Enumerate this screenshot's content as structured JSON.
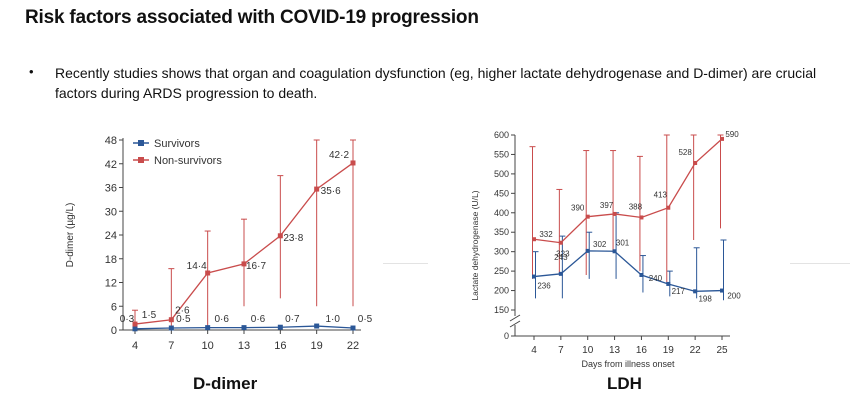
{
  "slide": {
    "title": "Risk factors associated with COVID-19 progression",
    "bullet": "Recently studies shows that organ and coagulation dysfunction (eg, higher lactate dehydrogenase and D-dimer) are crucial factors during ARDS progression to death."
  },
  "colors": {
    "survivors": "#2b5797",
    "non_survivors": "#c94c4c"
  },
  "chart_data": [
    {
      "type": "line",
      "title": "D-dimer",
      "xlabel": "",
      "ylabel": "D-dimer (µg/L)",
      "x": [
        4,
        7,
        10,
        13,
        16,
        19,
        22
      ],
      "ylim": [
        0,
        48
      ],
      "yticks": [
        0,
        6,
        12,
        18,
        24,
        30,
        36,
        42,
        48
      ],
      "legend_position": "top-left",
      "error_bars": true,
      "series": [
        {
          "name": "Survivors",
          "values": [
            0.3,
            0.5,
            0.6,
            0.6,
            0.7,
            1.0,
            0.5
          ],
          "labels": [
            "0·3",
            "0·5",
            "0·6",
            "0·6",
            "0·7",
            "1·0",
            "0·5"
          ],
          "err_upper": [
            null,
            null,
            null,
            null,
            null,
            null,
            null
          ]
        },
        {
          "name": "Non-survivors",
          "values": [
            1.5,
            2.6,
            14.4,
            16.7,
            23.8,
            35.6,
            42.2
          ],
          "labels": [
            "1·5",
            "2·6",
            "14·4",
            "16·7",
            "23·8",
            "35·6",
            "42·2"
          ],
          "err_upper": [
            5,
            15.5,
            25,
            28,
            39,
            48,
            48
          ],
          "err_lower": [
            0,
            0,
            1,
            6,
            8,
            6,
            6
          ]
        }
      ]
    },
    {
      "type": "line",
      "title": "LDH",
      "xlabel": "Days from illness onset",
      "ylabel": "Lactate dehydrogenase (U/L)",
      "x": [
        4,
        7,
        10,
        13,
        16,
        19,
        22,
        25
      ],
      "ylim": [
        0,
        600
      ],
      "yticks": [
        0,
        150,
        200,
        250,
        300,
        350,
        400,
        450,
        500,
        550,
        600
      ],
      "axis_break": true,
      "error_bars": true,
      "series": [
        {
          "name": "Survivors",
          "values": [
            236,
            243,
            302,
            301,
            240,
            217,
            198,
            200
          ],
          "labels": [
            "236",
            "243",
            "302",
            "301",
            "240",
            "217",
            "198",
            "200"
          ],
          "err_upper": [
            300,
            340,
            350,
            400,
            290,
            250,
            310,
            330
          ],
          "err_lower": [
            180,
            180,
            230,
            230,
            195,
            185,
            180,
            175
          ]
        },
        {
          "name": "Non-survivors",
          "values": [
            332,
            323,
            390,
            397,
            388,
            413,
            528,
            590
          ],
          "labels": [
            "332",
            "323",
            "390",
            "397",
            "388",
            "413",
            "528",
            "590"
          ],
          "err_upper": [
            570,
            460,
            560,
            560,
            545,
            600,
            600,
            600
          ],
          "err_lower": [
            230,
            240,
            240,
            300,
            250,
            220,
            330,
            360
          ]
        }
      ]
    }
  ]
}
